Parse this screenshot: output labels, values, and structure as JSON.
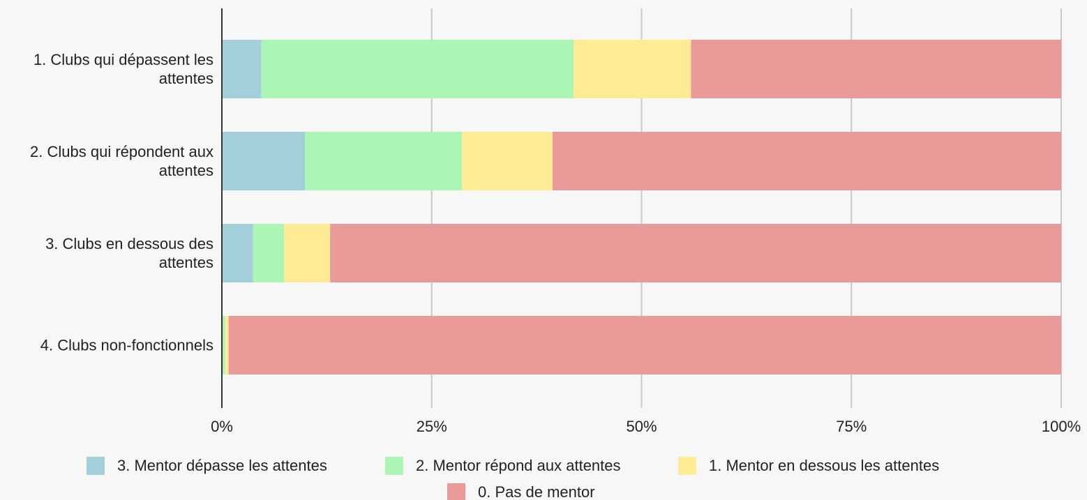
{
  "chart_data": {
    "type": "stacked_bar_horizontal",
    "categories": [
      "1. Clubs qui dépassent les attentes",
      "2. Clubs qui répondent aux attentes",
      "3. Clubs en dessous des attentes",
      "4. Clubs non-fonctionnels"
    ],
    "series": [
      {
        "name": "3. Mentor dépasse les attentes",
        "color": "#a2cfd9",
        "values": [
          4.7,
          9.9,
          3.7,
          0
        ]
      },
      {
        "name": "2. Mentor répond aux attentes",
        "color": "#acf6b5",
        "values": [
          37.2,
          18.7,
          3.7,
          0.4
        ]
      },
      {
        "name": "1. Mentor en dessous les attentes",
        "color": "#fdeb96",
        "values": [
          14.0,
          10.8,
          5.5,
          0.4
        ]
      },
      {
        "name": "0. Pas de mentor",
        "color": "#ea9a98",
        "values": [
          44.1,
          60.6,
          87.1,
          99.2
        ]
      }
    ],
    "xlim": [
      0,
      100
    ],
    "xticks": [
      {
        "value": 0,
        "label": "0%"
      },
      {
        "value": 25,
        "label": "25%"
      },
      {
        "value": 50,
        "label": "50%"
      },
      {
        "value": 75,
        "label": "75%"
      },
      {
        "value": 100,
        "label": "100%"
      }
    ],
    "grid": true
  }
}
